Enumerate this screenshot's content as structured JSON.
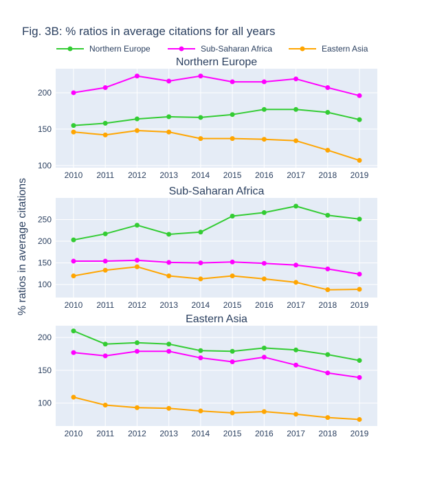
{
  "figure": {
    "title": "Fig. 3B: % ratios in average citations for all years",
    "ylabel": "% ratios in average citations"
  },
  "colors": {
    "Northern Europe": "#33cc33",
    "Sub-Saharan Africa": "#ff00ff",
    "Eastern Asia": "#ffa500",
    "plot_bg": "#e5ecf6",
    "text": "#2a3f5f"
  },
  "legend": {
    "placement": "top",
    "entries": [
      "Northern Europe",
      "Sub-Saharan Africa",
      "Eastern Asia"
    ]
  },
  "chart_data": [
    {
      "type": "line",
      "title": "Northern Europe",
      "x": [
        2010,
        2011,
        2012,
        2013,
        2014,
        2015,
        2016,
        2017,
        2018,
        2019
      ],
      "ylim": [
        97,
        233
      ],
      "yticks": [
        100,
        150,
        200
      ],
      "series": [
        {
          "name": "Northern Europe",
          "values": [
            155,
            158,
            164,
            167,
            166,
            170,
            177,
            177,
            173,
            163
          ]
        },
        {
          "name": "Sub-Saharan Africa",
          "values": [
            200,
            207,
            223,
            216,
            223,
            215,
            215,
            219,
            207,
            196
          ]
        },
        {
          "name": "Eastern Asia",
          "values": [
            146,
            142,
            148,
            146,
            137,
            137,
            136,
            134,
            121,
            107
          ]
        }
      ]
    },
    {
      "type": "line",
      "title": "Sub-Saharan Africa",
      "x": [
        2010,
        2011,
        2012,
        2013,
        2014,
        2015,
        2016,
        2017,
        2018,
        2019
      ],
      "ylim": [
        70,
        300
      ],
      "yticks": [
        100,
        150,
        200,
        250
      ],
      "series": [
        {
          "name": "Northern Europe",
          "values": [
            203,
            217,
            237,
            216,
            221,
            258,
            266,
            281,
            260,
            251
          ]
        },
        {
          "name": "Sub-Saharan Africa",
          "values": [
            154,
            154,
            156,
            151,
            150,
            152,
            149,
            145,
            136,
            124
          ]
        },
        {
          "name": "Eastern Asia",
          "values": [
            120,
            133,
            141,
            120,
            113,
            120,
            113,
            105,
            88,
            89
          ]
        }
      ]
    },
    {
      "type": "line",
      "title": "Eastern Asia",
      "x": [
        2010,
        2011,
        2012,
        2013,
        2014,
        2015,
        2016,
        2017,
        2018,
        2019
      ],
      "ylim": [
        65,
        218
      ],
      "yticks": [
        100,
        150,
        200
      ],
      "series": [
        {
          "name": "Northern Europe",
          "values": [
            210,
            190,
            192,
            190,
            180,
            179,
            184,
            181,
            174,
            165
          ]
        },
        {
          "name": "Sub-Saharan Africa",
          "values": [
            177,
            172,
            179,
            179,
            169,
            163,
            170,
            158,
            146,
            139
          ]
        },
        {
          "name": "Eastern Asia",
          "values": [
            109,
            97,
            93,
            92,
            88,
            85,
            87,
            83,
            78,
            75
          ]
        }
      ]
    }
  ]
}
